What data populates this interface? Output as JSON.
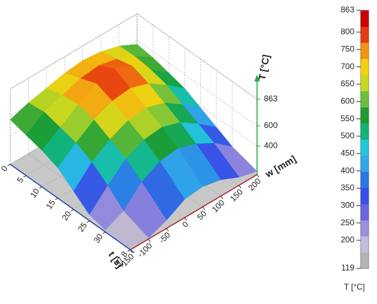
{
  "chart_data": {
    "type": "surface",
    "x_label": "t [s]",
    "y_label": "w [mm]",
    "z_label": "T [°C]",
    "t": [
      0,
      5,
      10,
      15,
      20,
      25,
      30,
      37.8
    ],
    "w": [
      -150,
      -100,
      -50,
      0,
      50,
      100,
      150,
      200
    ],
    "z": [
      [
        560,
        620,
        660,
        700,
        720,
        700,
        650,
        560
      ],
      [
        520,
        640,
        700,
        760,
        780,
        740,
        660,
        540
      ],
      [
        480,
        600,
        720,
        820,
        863,
        780,
        640,
        500
      ],
      [
        420,
        560,
        680,
        760,
        780,
        720,
        600,
        460
      ],
      [
        300,
        480,
        600,
        680,
        700,
        640,
        520,
        380
      ],
      [
        180,
        360,
        520,
        600,
        620,
        560,
        440,
        300
      ],
      [
        140,
        220,
        400,
        500,
        520,
        460,
        360,
        220
      ],
      [
        119,
        130,
        200,
        300,
        320,
        280,
        200,
        150
      ]
    ],
    "xlim": [
      0,
      37.8
    ],
    "xticks": [
      0,
      5,
      10,
      15,
      20,
      25,
      30,
      37.8
    ],
    "ylim": [
      -150,
      200
    ],
    "yticks": [
      -150,
      -100,
      -50,
      0,
      50,
      100,
      150,
      200
    ],
    "zlim": [
      119,
      863
    ],
    "zticks": [
      400,
      600,
      863
    ],
    "grid": true,
    "colorbar": {
      "label": "T [°C]",
      "lim": [
        119,
        863
      ],
      "ticks": [
        119,
        200,
        250,
        300,
        350,
        400,
        450,
        500,
        550,
        600,
        650,
        700,
        750,
        800,
        863
      ],
      "colors": [
        "#b4b4b4",
        "#c4bcdc",
        "#9a90dc",
        "#6a64e0",
        "#3a4ee8",
        "#2a78e2",
        "#30a8ea",
        "#20c8d8",
        "#12b27a",
        "#1c9c30",
        "#6cc03c",
        "#c8d820",
        "#f2d010",
        "#f29412",
        "#e63a10",
        "#cc0000"
      ]
    }
  }
}
